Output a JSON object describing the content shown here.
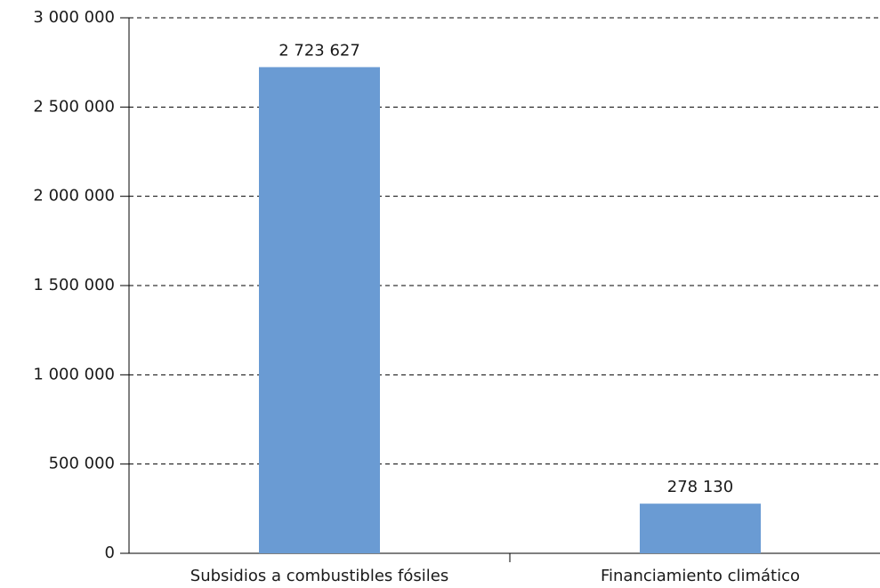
{
  "chart_data": {
    "type": "bar",
    "categories": [
      "Subsidios a combustibles fósiles",
      "Financiamiento climático"
    ],
    "values": [
      2723627,
      278130
    ],
    "value_labels": [
      "2 723 627",
      "278 130"
    ],
    "color": "#6a9bd3",
    "ylim": [
      0,
      3000000
    ],
    "yticks": [
      0,
      {
        "value": 500000,
        "label": "500 000"
      },
      {
        "value": 1000000,
        "label": "1 000 000"
      },
      {
        "value": 1500000,
        "label": "1 500 000"
      },
      {
        "value": 2000000,
        "label": "2 000 000"
      },
      {
        "value": 2500000,
        "label": "2 500 000"
      },
      {
        "value": 3000000,
        "label": "3 000 000"
      }
    ],
    "grid": true
  }
}
